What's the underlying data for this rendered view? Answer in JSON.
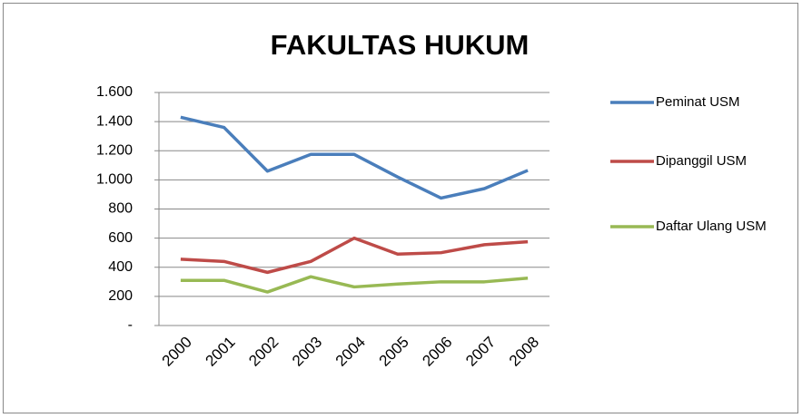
{
  "chart_data": {
    "type": "line",
    "title": "FAKULTAS HUKUM",
    "categories": [
      "2000",
      "2001",
      "2002",
      "2003",
      "2004",
      "2005",
      "2006",
      "2007",
      "2008"
    ],
    "series": [
      {
        "name": "Peminat USM",
        "color": "#4a7ebb",
        "values": [
          1430,
          1360,
          1060,
          1175,
          1175,
          1020,
          875,
          940,
          1065
        ]
      },
      {
        "name": "Dipanggil USM",
        "color": "#be4b48",
        "values": [
          455,
          440,
          365,
          440,
          600,
          490,
          500,
          555,
          575
        ]
      },
      {
        "name": "Daftar Ulang USM",
        "color": "#98b954",
        "values": [
          310,
          310,
          230,
          335,
          265,
          285,
          300,
          300,
          325
        ]
      }
    ],
    "ylim": [
      0,
      1600
    ],
    "yticks": [
      {
        "value": 0,
        "label": "-"
      },
      200,
      400,
      600,
      800,
      {
        "value": 1000,
        "label": "1.000"
      },
      {
        "value": 1200,
        "label": "1.200"
      },
      {
        "value": 1400,
        "label": "1.400"
      },
      {
        "value": 1600,
        "label": "1.600"
      }
    ],
    "grid": true,
    "legend": "right"
  }
}
